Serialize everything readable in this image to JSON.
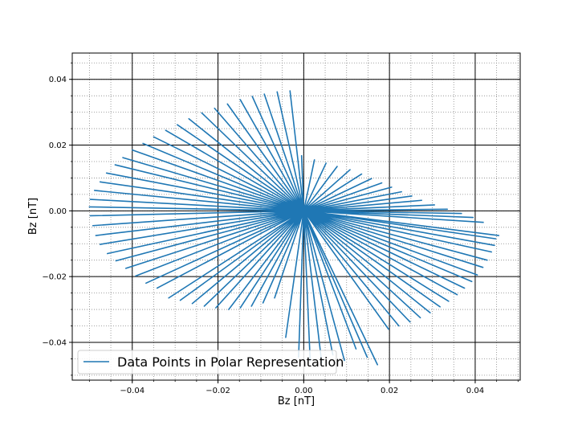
{
  "chart_data": {
    "type": "line",
    "title": "",
    "xlabel": "Bz [nT]",
    "ylabel": "Bz [nT]",
    "xlim": [
      -0.054,
      0.0505
    ],
    "ylim": [
      -0.0515,
      0.048
    ],
    "x_ticks": [
      -0.04,
      -0.02,
      0.0,
      0.02,
      0.04
    ],
    "x_tick_labels": [
      "−0.04",
      "−0.02",
      "0.00",
      "0.02",
      "0.04"
    ],
    "y_ticks": [
      -0.04,
      -0.02,
      0.0,
      0.02,
      0.04
    ],
    "y_tick_labels": [
      "−0.04",
      "−0.02",
      "0.00",
      "0.02",
      "0.04"
    ],
    "grid": {
      "major": true,
      "minor": true,
      "minor_step": 0.005
    },
    "legend": {
      "position": "lower-left"
    },
    "series": [
      {
        "name": "Data Points in Polar Representation",
        "color": "#1f77b4",
        "description_of_shape": "line alternating between origin and points around the origin",
        "points": [
          [
            0.0,
            0.0
          ],
          [
            0.0455,
            -0.0075
          ],
          [
            0.0,
            0.0
          ],
          [
            0.0448,
            -0.0085
          ],
          [
            0.0,
            0.0
          ],
          [
            0.0445,
            -0.0105
          ],
          [
            0.0,
            0.0
          ],
          [
            0.0438,
            -0.0125
          ],
          [
            0.0,
            0.0
          ],
          [
            0.0428,
            -0.015
          ],
          [
            0.0,
            0.0
          ],
          [
            0.0418,
            -0.0172
          ],
          [
            0.0,
            0.0
          ],
          [
            0.0405,
            -0.0195
          ],
          [
            0.0,
            0.0
          ],
          [
            0.0392,
            -0.0215
          ],
          [
            0.0,
            0.0
          ],
          [
            0.0375,
            -0.0235
          ],
          [
            0.0,
            0.0
          ],
          [
            0.0358,
            -0.0255
          ],
          [
            0.0,
            0.0
          ],
          [
            0.0338,
            -0.0275
          ],
          [
            0.0,
            0.0
          ],
          [
            0.0318,
            -0.0292
          ],
          [
            0.0,
            0.0
          ],
          [
            0.0295,
            -0.031
          ],
          [
            0.0,
            0.0
          ],
          [
            0.0272,
            -0.0325
          ],
          [
            0.0,
            0.0
          ],
          [
            0.0248,
            -0.0338
          ],
          [
            0.0,
            0.0
          ],
          [
            0.0222,
            -0.035
          ],
          [
            0.0,
            0.0
          ],
          [
            0.0198,
            -0.036
          ],
          [
            0.0,
            0.0
          ],
          [
            0.0172,
            -0.0468
          ],
          [
            0.0,
            0.0
          ],
          [
            0.0148,
            -0.0445
          ],
          [
            0.0,
            0.0
          ],
          [
            0.0122,
            -0.042
          ],
          [
            0.0,
            0.0
          ],
          [
            0.0095,
            -0.0455
          ],
          [
            0.0,
            0.0
          ],
          [
            0.0068,
            -0.0438
          ],
          [
            0.0,
            0.0
          ],
          [
            0.0042,
            -0.0462
          ],
          [
            0.0,
            0.0
          ],
          [
            0.0015,
            -0.0455
          ],
          [
            0.0,
            0.0
          ],
          [
            -0.0012,
            -0.0445
          ],
          [
            0.0,
            0.0
          ],
          [
            -0.0042,
            -0.0385
          ],
          [
            0.0,
            0.0
          ],
          [
            -0.0068,
            -0.0265
          ],
          [
            0.0,
            0.0
          ],
          [
            -0.0095,
            -0.028
          ],
          [
            0.0,
            0.0
          ],
          [
            -0.0122,
            -0.029
          ],
          [
            0.0,
            0.0
          ],
          [
            -0.0148,
            -0.0295
          ],
          [
            0.0,
            0.0
          ],
          [
            -0.0175,
            -0.03
          ],
          [
            0.0,
            0.0
          ],
          [
            -0.0205,
            -0.0295
          ],
          [
            0.0,
            0.0
          ],
          [
            -0.0232,
            -0.029
          ],
          [
            0.0,
            0.0
          ],
          [
            -0.026,
            -0.0282
          ],
          [
            0.0,
            0.0
          ],
          [
            -0.0288,
            -0.0272
          ],
          [
            0.0,
            0.0
          ],
          [
            -0.0315,
            -0.0265
          ],
          [
            0.0,
            0.0
          ],
          [
            -0.0342,
            -0.0235
          ],
          [
            0.0,
            0.0
          ],
          [
            -0.0368,
            -0.022
          ],
          [
            0.0,
            0.0
          ],
          [
            -0.0392,
            -0.0198
          ],
          [
            0.0,
            0.0
          ],
          [
            -0.0415,
            -0.0175
          ],
          [
            0.0,
            0.0
          ],
          [
            -0.0438,
            -0.0152
          ],
          [
            0.0,
            0.0
          ],
          [
            -0.0458,
            -0.013
          ],
          [
            0.0,
            0.0
          ],
          [
            -0.0475,
            -0.0102
          ],
          [
            0.0,
            0.0
          ],
          [
            -0.0485,
            -0.0075
          ],
          [
            0.0,
            0.0
          ],
          [
            -0.0492,
            -0.0045
          ],
          [
            0.0,
            0.0
          ],
          [
            -0.0498,
            -0.0015
          ],
          [
            0.0,
            0.0
          ],
          [
            -0.05,
            0.0012
          ],
          [
            0.0,
            0.0
          ],
          [
            -0.0498,
            0.0035
          ],
          [
            0.0,
            0.0
          ],
          [
            -0.0488,
            0.0062
          ],
          [
            0.0,
            0.0
          ],
          [
            -0.0475,
            0.0088
          ],
          [
            0.0,
            0.0
          ],
          [
            -0.046,
            0.0115
          ],
          [
            0.0,
            0.0
          ],
          [
            -0.044,
            0.014
          ],
          [
            0.0,
            0.0
          ],
          [
            -0.0422,
            0.0162
          ],
          [
            0.0,
            0.0
          ],
          [
            -0.04,
            0.0185
          ],
          [
            0.0,
            0.0
          ],
          [
            -0.0375,
            0.0205
          ],
          [
            0.0,
            0.0
          ],
          [
            -0.035,
            0.0225
          ],
          [
            0.0,
            0.0
          ],
          [
            -0.0322,
            0.0245
          ],
          [
            0.0,
            0.0
          ],
          [
            -0.0295,
            0.0262
          ],
          [
            0.0,
            0.0
          ],
          [
            -0.0268,
            0.028
          ],
          [
            0.0,
            0.0
          ],
          [
            -0.0238,
            0.0298
          ],
          [
            0.0,
            0.0
          ],
          [
            -0.0208,
            0.0312
          ],
          [
            0.0,
            0.0
          ],
          [
            -0.0178,
            0.0325
          ],
          [
            0.0,
            0.0
          ],
          [
            -0.0148,
            0.0338
          ],
          [
            0.0,
            0.0
          ],
          [
            -0.012,
            0.0348
          ],
          [
            0.0,
            0.0
          ],
          [
            -0.0092,
            0.0355
          ],
          [
            0.0,
            0.0
          ],
          [
            -0.0062,
            0.0362
          ],
          [
            0.0,
            0.0
          ],
          [
            -0.0032,
            0.0365
          ],
          [
            0.0,
            0.0
          ],
          [
            -0.0005,
            0.0168
          ],
          [
            0.0,
            0.0
          ],
          [
            0.0025,
            0.0155
          ],
          [
            0.0,
            0.0
          ],
          [
            0.0052,
            0.0145
          ],
          [
            0.0,
            0.0
          ],
          [
            0.0078,
            0.0135
          ],
          [
            0.0,
            0.0
          ],
          [
            0.0108,
            0.0125
          ],
          [
            0.0,
            0.0
          ],
          [
            0.0135,
            0.0112
          ],
          [
            0.0,
            0.0
          ],
          [
            0.0158,
            0.0098
          ],
          [
            0.0,
            0.0
          ],
          [
            0.0182,
            0.0085
          ],
          [
            0.0,
            0.0
          ],
          [
            0.0205,
            0.0072
          ],
          [
            0.0,
            0.0
          ],
          [
            0.0228,
            0.0058
          ],
          [
            0.0,
            0.0
          ],
          [
            0.0252,
            0.0045
          ],
          [
            0.0,
            0.0
          ],
          [
            0.0275,
            0.0032
          ],
          [
            0.0,
            0.0
          ],
          [
            0.0305,
            0.0018
          ],
          [
            0.0,
            0.0
          ],
          [
            0.0335,
            0.0005
          ],
          [
            0.0,
            0.0
          ],
          [
            0.0368,
            -0.0008
          ],
          [
            0.0,
            0.0
          ],
          [
            0.0395,
            -0.002
          ],
          [
            0.0,
            0.0
          ],
          [
            0.042,
            -0.0035
          ]
        ]
      }
    ]
  }
}
